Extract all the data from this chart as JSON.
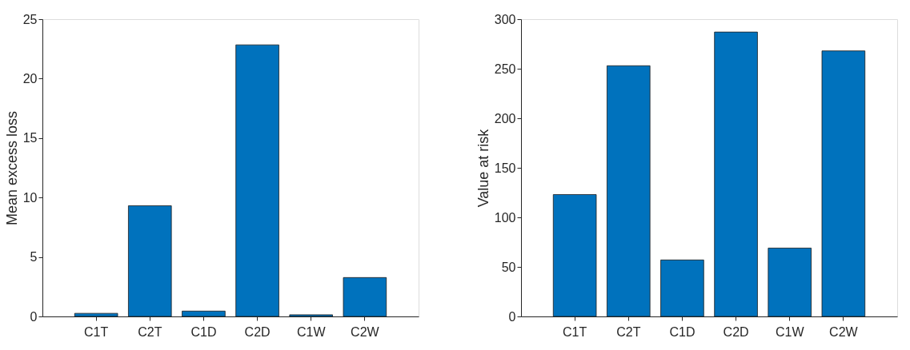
{
  "chart_data": [
    {
      "type": "bar",
      "ylabel": "Mean excess loss",
      "categories": [
        "C1T",
        "C2T",
        "C1D",
        "C2D",
        "C1W",
        "C2W"
      ],
      "values": [
        0.26,
        9.31,
        0.45,
        22.84,
        0.14,
        3.27
      ],
      "color": "#0072bd",
      "ylim": [
        0,
        25
      ],
      "yticks": [
        0,
        5,
        10,
        15,
        20,
        25
      ]
    },
    {
      "type": "bar",
      "ylabel": "Value at risk",
      "categories": [
        "C1T",
        "C2T",
        "C1D",
        "C2D",
        "C1W",
        "C2W"
      ],
      "values": [
        123,
        253,
        57,
        287,
        69,
        268
      ],
      "color": "#0072bd",
      "ylim": [
        0,
        300
      ],
      "yticks": [
        0,
        50,
        100,
        150,
        200,
        250,
        300
      ]
    }
  ]
}
